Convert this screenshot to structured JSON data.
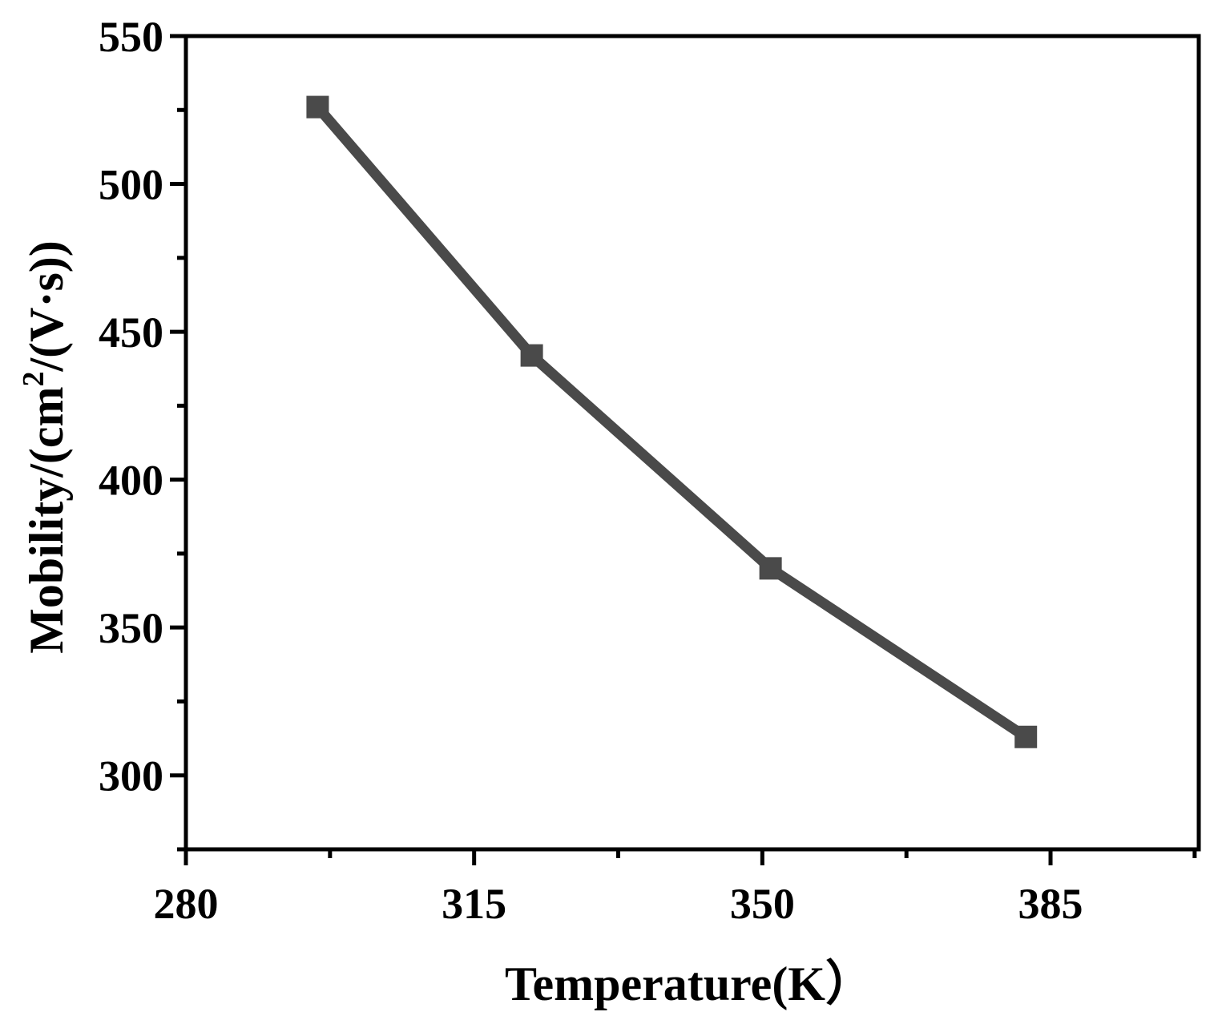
{
  "chart_data": {
    "type": "line",
    "xlabel": "Temperature(K）",
    "ylabel_main": "Mobility/(cm",
    "ylabel_sup": "2",
    "ylabel_tail": "/(V·s))",
    "xlim": [
      280,
      403
    ],
    "ylim": [
      275,
      550
    ],
    "x_ticks": [
      280,
      315,
      350,
      385
    ],
    "x_minor_ticks": [
      297.5,
      332.5,
      367.5,
      402.5
    ],
    "y_ticks": [
      300,
      350,
      400,
      450,
      500,
      550
    ],
    "y_minor_ticks": [
      275,
      325,
      375,
      425,
      475,
      525
    ],
    "x_tick_labels": [
      "280",
      "315",
      "350",
      "385"
    ],
    "y_tick_labels": [
      "300",
      "350",
      "400",
      "450",
      "500",
      "550"
    ],
    "series": [
      {
        "x": [
          296,
          322,
          351,
          382
        ],
        "y": [
          526,
          442,
          370,
          313
        ],
        "color": "#4a4a4a",
        "marker": "square"
      }
    ]
  }
}
